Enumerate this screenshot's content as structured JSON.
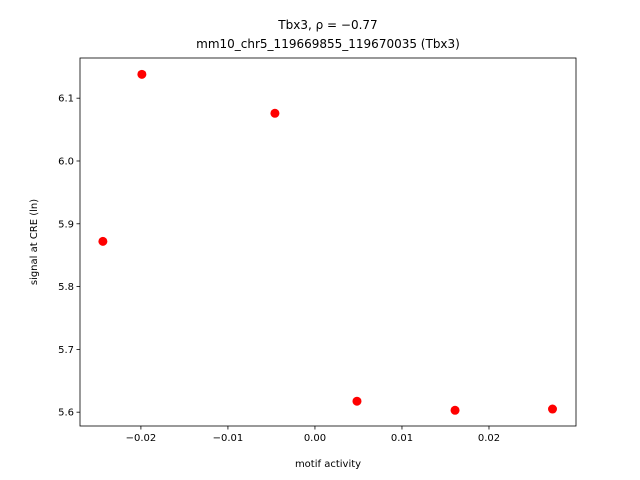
{
  "chart_data": {
    "type": "scatter",
    "title": "Tbx3, ρ = −0.77",
    "subtitle": "mm10_chr5_119669855_119670035 (Tbx3)",
    "x_label": "motif activity",
    "y_label": "signal at CRE (ln)",
    "x": [
      -0.02437,
      -0.01989,
      -0.0046,
      0.00483,
      0.0161,
      0.0273
    ],
    "values": [
      5.872,
      6.138,
      6.076,
      5.6175,
      5.603,
      5.605
    ],
    "color": "#ff0000",
    "xlim": [
      -0.027,
      0.03
    ],
    "ylim": [
      5.578,
      6.164
    ],
    "xticks": [
      {
        "value": -0.02,
        "label": "−0.02"
      },
      {
        "value": -0.01,
        "label": "−0.01"
      },
      {
        "value": 0,
        "label": "0.00"
      },
      0.01,
      0.02
    ],
    "yticks": [
      5.6,
      5.7,
      5.8,
      5.9,
      {
        "value": 6.0,
        "label": "6.0"
      },
      6.1
    ],
    "grid": false
  }
}
